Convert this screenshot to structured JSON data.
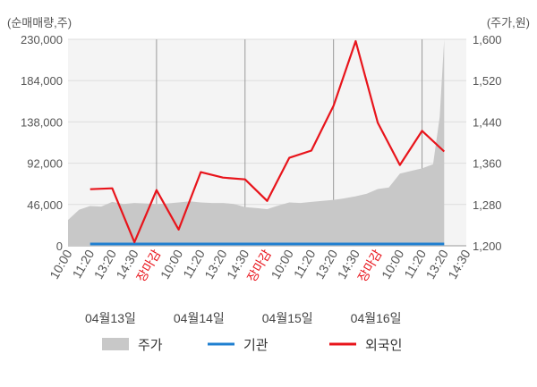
{
  "chart_data": {
    "type": "line",
    "left_axis_label": "(순매매량,주)",
    "right_axis_label": "(주가,원)",
    "y_left_ticks": [
      "230,000",
      "184,000",
      "138,000",
      "92,000",
      "46,000",
      "0"
    ],
    "y_right_ticks": [
      "1,600",
      "1,520",
      "1,440",
      "1,360",
      "1,280",
      "1,200"
    ],
    "ylim_left": [
      0,
      230000
    ],
    "ylim_right": [
      1200,
      1600
    ],
    "x_tick_labels": [
      "10:00",
      "11:20",
      "13:20",
      "14:30",
      "장마감",
      "10:00",
      "11:20",
      "13:20",
      "14:30",
      "장마감",
      "10:00",
      "11:20",
      "13:20",
      "14:30",
      "장마감",
      "10:00",
      "11:20",
      "13:20",
      "14:30"
    ],
    "closing_label": "장마감",
    "date_labels": [
      "04월13일",
      "04월14일",
      "04월15일",
      "04월16일"
    ],
    "legend": [
      {
        "label": "주가",
        "color": "#c8c8c8",
        "kind": "area"
      },
      {
        "label": "기관",
        "color": "#1f7fd0",
        "kind": "line"
      },
      {
        "label": "외국인",
        "color": "#e8141b",
        "kind": "line"
      }
    ],
    "series": [
      {
        "name": "외국인",
        "color": "#e8141b",
        "x_index": [
          1,
          2,
          3,
          4,
          5,
          6,
          7,
          8,
          9,
          10,
          11,
          12,
          13,
          14,
          15,
          16,
          17
        ],
        "values": [
          63000,
          64000,
          4000,
          62000,
          18000,
          82000,
          76000,
          74000,
          50000,
          98000,
          106000,
          156000,
          228000,
          137000,
          90000,
          128000,
          105000
        ]
      },
      {
        "name": "기관",
        "color": "#1f7fd0",
        "x_index": [
          1,
          17
        ],
        "values": [
          2000,
          2000
        ]
      }
    ],
    "price_area": {
      "name": "주가",
      "color": "#c8c8c8",
      "x": [
        0,
        0.5,
        1,
        1.5,
        2,
        2.5,
        3,
        3.5,
        4,
        4.5,
        5,
        5.5,
        6,
        6.5,
        7,
        7.5,
        8,
        8.5,
        9,
        9.5,
        10,
        10.5,
        11,
        11.5,
        12,
        12.5,
        13,
        13.5,
        14,
        14.5,
        15,
        15.5,
        16,
        16.5,
        16.8,
        17
      ],
      "values": [
        1250,
        1270,
        1277,
        1276,
        1285,
        1281,
        1283,
        1282,
        1281,
        1282,
        1284,
        1286,
        1284,
        1283,
        1283,
        1281,
        1275,
        1273,
        1271,
        1278,
        1284,
        1283,
        1285,
        1287,
        1289,
        1292,
        1296,
        1301,
        1310,
        1313,
        1340,
        1345,
        1350,
        1358,
        1450,
        1600
      ]
    }
  }
}
